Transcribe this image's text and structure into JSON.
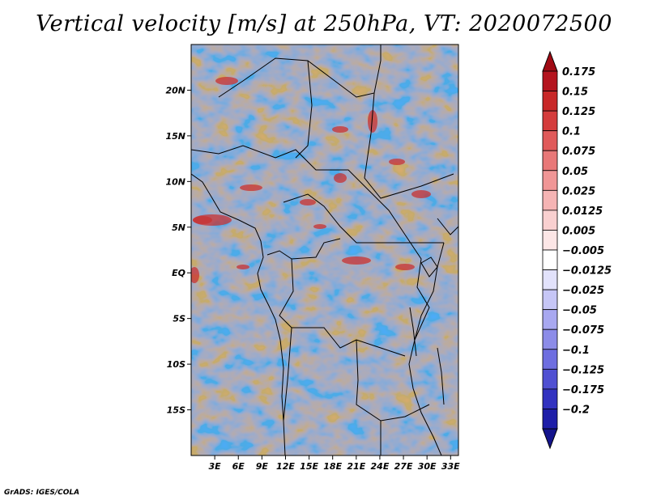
{
  "title": "Vertical velocity [m/s] at 250hPa, VT: 2020072500",
  "footer": "GrADS: IGES/COLA",
  "map": {
    "lon_range": [
      0,
      34
    ],
    "lat_range": [
      -20,
      25
    ],
    "lat_ticks": [
      {
        "value": 20,
        "label": "20N"
      },
      {
        "value": 15,
        "label": "15N"
      },
      {
        "value": 10,
        "label": "10N"
      },
      {
        "value": 5,
        "label": "5N"
      },
      {
        "value": 0,
        "label": "EQ"
      },
      {
        "value": -5,
        "label": "5S"
      },
      {
        "value": -10,
        "label": "10S"
      },
      {
        "value": -15,
        "label": "15S"
      }
    ],
    "lon_ticks": [
      {
        "value": 3,
        "label": "3E"
      },
      {
        "value": 6,
        "label": "6E"
      },
      {
        "value": 9,
        "label": "9E"
      },
      {
        "value": 12,
        "label": "12E"
      },
      {
        "value": 15,
        "label": "15E"
      },
      {
        "value": 18,
        "label": "18E"
      },
      {
        "value": 21,
        "label": "21E"
      },
      {
        "value": 24,
        "label": "24E"
      },
      {
        "value": 27,
        "label": "27E"
      },
      {
        "value": 30,
        "label": "30E"
      },
      {
        "value": 33,
        "label": "33E"
      }
    ]
  },
  "colorbar": {
    "levels": [
      {
        "label": "0.175",
        "color": "#b4141e"
      },
      {
        "label": "0.15",
        "color": "#c82828"
      },
      {
        "label": "0.125",
        "color": "#d43c3c"
      },
      {
        "label": "0.1",
        "color": "#e05a5a"
      },
      {
        "label": "0.075",
        "color": "#e87878"
      },
      {
        "label": "0.05",
        "color": "#f09696"
      },
      {
        "label": "0.025",
        "color": "#f5b4b4"
      },
      {
        "label": "0.0125",
        "color": "#f9d0d0"
      },
      {
        "label": "0.005",
        "color": "#fce6e6"
      },
      {
        "label": "−0.005",
        "color": "#ffffff"
      },
      {
        "label": "−0.0125",
        "color": "#e2e2fb"
      },
      {
        "label": "−0.025",
        "color": "#c6c6f6"
      },
      {
        "label": "−0.05",
        "color": "#a8a8f0"
      },
      {
        "label": "−0.075",
        "color": "#8c8ce8"
      },
      {
        "label": "−0.1",
        "color": "#6e6ee0"
      },
      {
        "label": "−0.125",
        "color": "#5050d2"
      },
      {
        "label": "−0.175",
        "color": "#3232c0"
      },
      {
        "label": "−0.2",
        "color": "#1e1ea8"
      }
    ],
    "top_arrow_color": "#a00a14",
    "bottom_arrow_color": "#14148c"
  }
}
